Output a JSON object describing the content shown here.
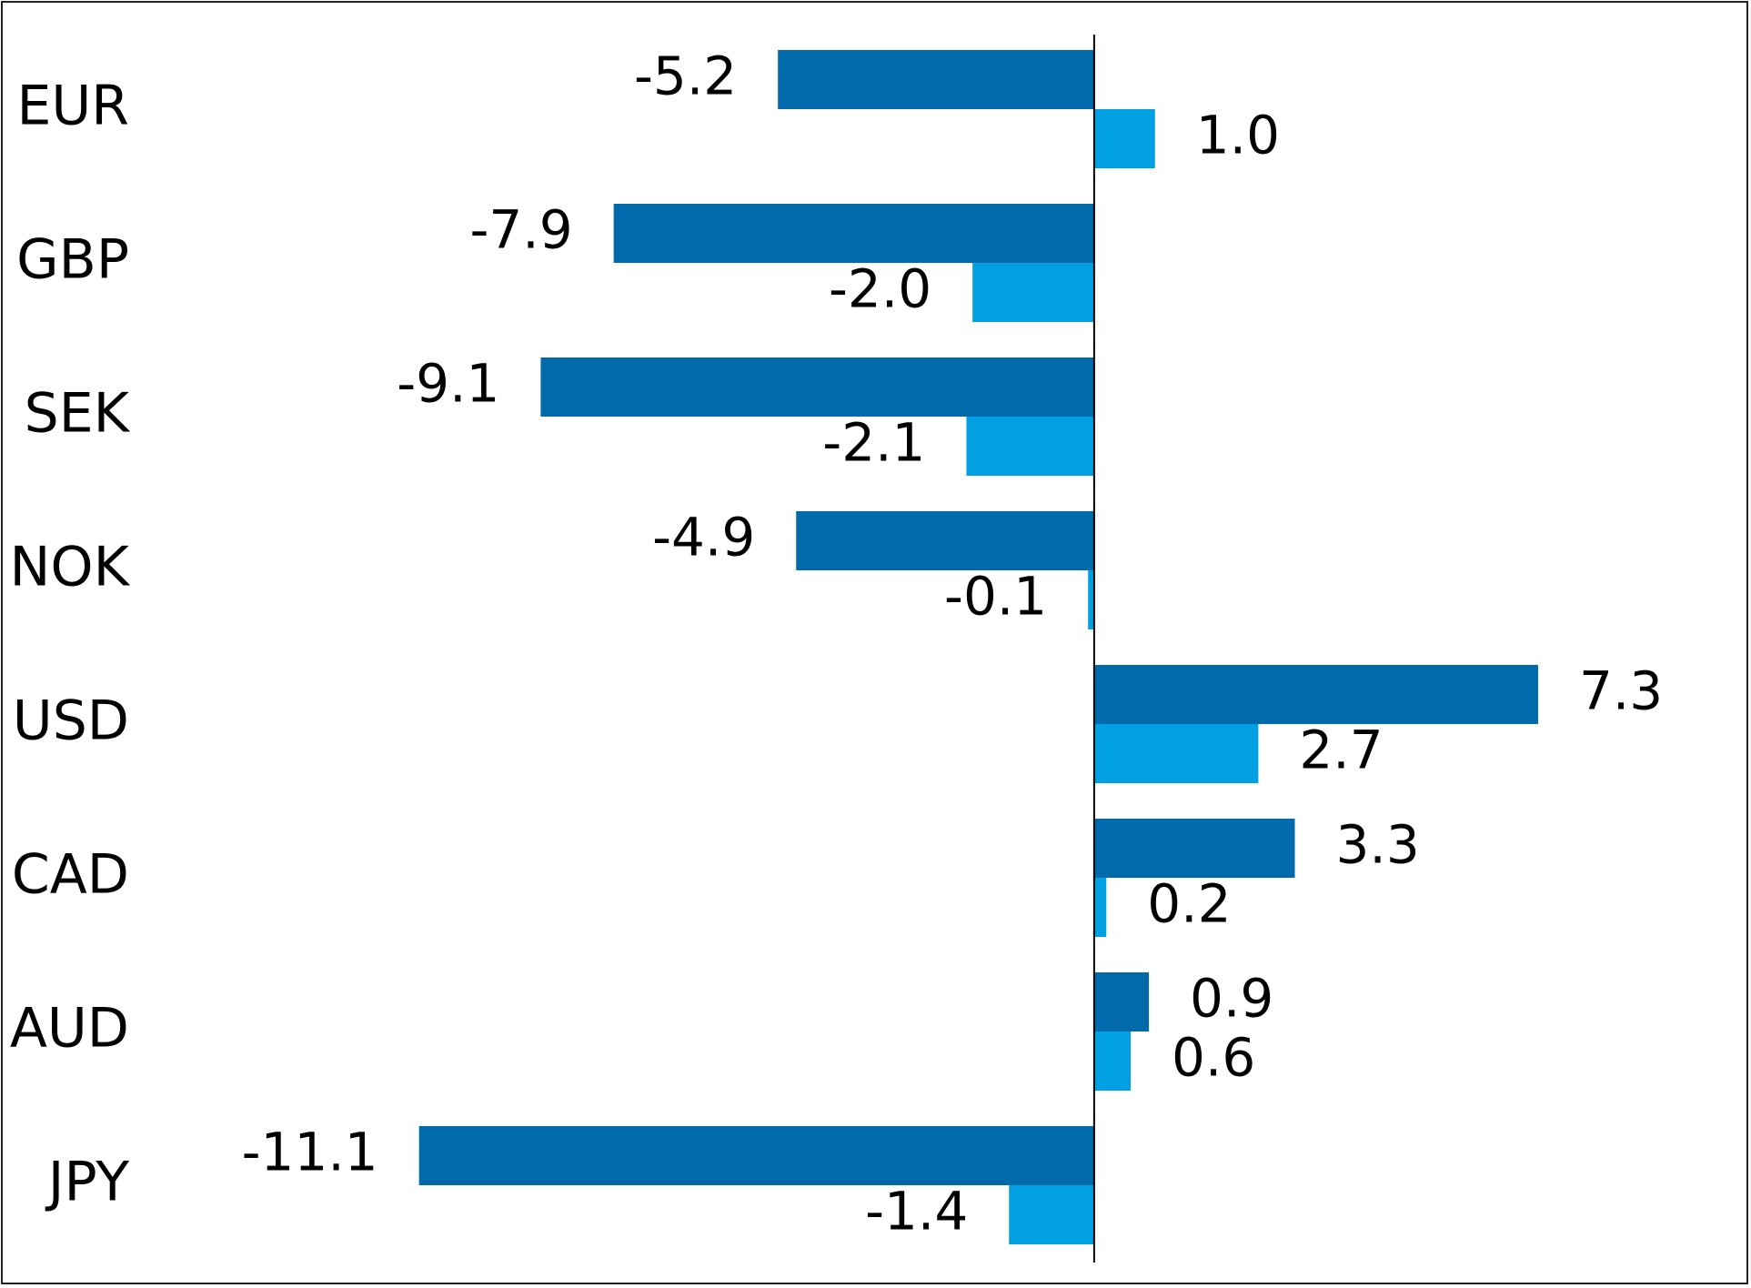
{
  "chart_data": {
    "type": "bar",
    "orientation": "horizontal",
    "title": "",
    "xlabel": "",
    "ylabel": "",
    "categories": [
      "EUR",
      "GBP",
      "SEK",
      "NOK",
      "USD",
      "CAD",
      "AUD",
      "JPY"
    ],
    "series": [
      {
        "color": "#006aab",
        "values": [
          -5.2,
          -7.9,
          -9.1,
          -4.9,
          7.3,
          3.3,
          0.9,
          -11.1
        ],
        "labels": [
          "-5.2",
          "-7.9",
          "-9.1",
          "-4.9",
          "7.3",
          "3.3",
          "0.9",
          "-11.1"
        ]
      },
      {
        "color": "#00a0e3",
        "values": [
          1.0,
          -2.0,
          -2.1,
          -0.1,
          2.7,
          0.2,
          0.6,
          -1.4
        ],
        "labels": [
          "1.0",
          "-2.0",
          "-2.1",
          "-0.1",
          "2.7",
          "0.2",
          "0.6",
          "-1.4"
        ]
      }
    ],
    "xlim": [
      -17.99,
      10.8
    ],
    "grid": false,
    "legend": "none",
    "zero_line_color": "#000000"
  }
}
